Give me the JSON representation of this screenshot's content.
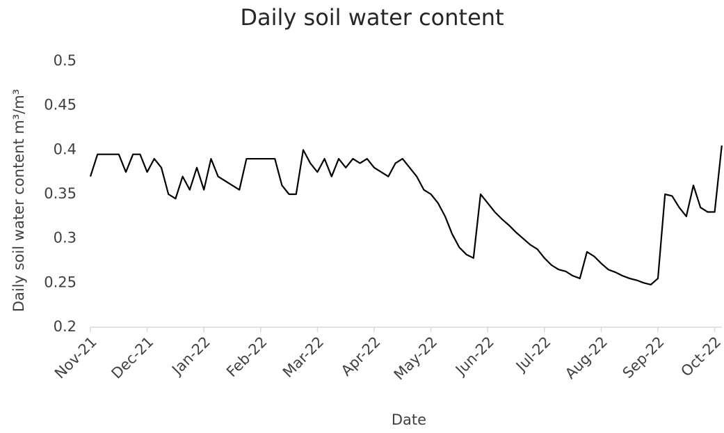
{
  "chart_data": {
    "type": "line",
    "title": "Daily soil water content",
    "x_label": "Date",
    "y_label": "Daily soil water content  m³/m³",
    "categories": [
      "Nov-21",
      null,
      null,
      null,
      null,
      null,
      null,
      null,
      "Dec-21",
      null,
      null,
      null,
      null,
      null,
      null,
      null,
      "Jan-22",
      null,
      null,
      null,
      null,
      null,
      null,
      null,
      "Feb-22",
      null,
      null,
      null,
      null,
      null,
      null,
      null,
      "Mar-22",
      null,
      null,
      null,
      null,
      null,
      null,
      null,
      "Apr-22",
      null,
      null,
      null,
      null,
      null,
      null,
      null,
      "May-22",
      null,
      null,
      null,
      null,
      null,
      null,
      null,
      "Jun-22",
      null,
      null,
      null,
      null,
      null,
      null,
      null,
      "Jul-22",
      null,
      null,
      null,
      null,
      null,
      null,
      null,
      "Aug-22",
      null,
      null,
      null,
      null,
      null,
      null,
      null,
      "Sep-22",
      null,
      null,
      null,
      null,
      null,
      null,
      null,
      "Oct-22",
      null
    ],
    "series": [
      {
        "name": "Daily soil water content",
        "color": "#000000",
        "values": [
          0.37,
          0.395,
          0.395,
          0.395,
          0.395,
          0.375,
          0.395,
          0.395,
          0.375,
          0.39,
          0.38,
          0.35,
          0.345,
          0.37,
          0.355,
          0.38,
          0.355,
          0.39,
          0.37,
          0.365,
          0.36,
          0.355,
          0.39,
          0.39,
          0.39,
          0.39,
          0.39,
          0.36,
          0.35,
          0.35,
          0.4,
          0.385,
          0.375,
          0.39,
          0.37,
          0.39,
          0.38,
          0.39,
          0.385,
          0.39,
          0.38,
          0.375,
          0.37,
          0.385,
          0.39,
          0.38,
          0.37,
          0.355,
          0.35,
          0.34,
          0.325,
          0.305,
          0.29,
          0.282,
          0.278,
          0.35,
          0.34,
          0.33,
          0.322,
          0.315,
          0.307,
          0.3,
          0.293,
          0.288,
          0.278,
          0.27,
          0.265,
          0.263,
          0.258,
          0.255,
          0.285,
          0.28,
          0.272,
          0.265,
          0.262,
          0.258,
          0.255,
          0.253,
          0.25,
          0.248,
          0.255,
          0.35,
          0.348,
          0.335,
          0.325,
          0.36,
          0.335,
          0.33,
          0.33,
          0.405
        ]
      }
    ],
    "ylim": [
      0.2,
      0.5
    ],
    "yticks": [
      0.2,
      0.25,
      0.3,
      0.35,
      0.4,
      0.45,
      0.5
    ],
    "grid": false
  }
}
